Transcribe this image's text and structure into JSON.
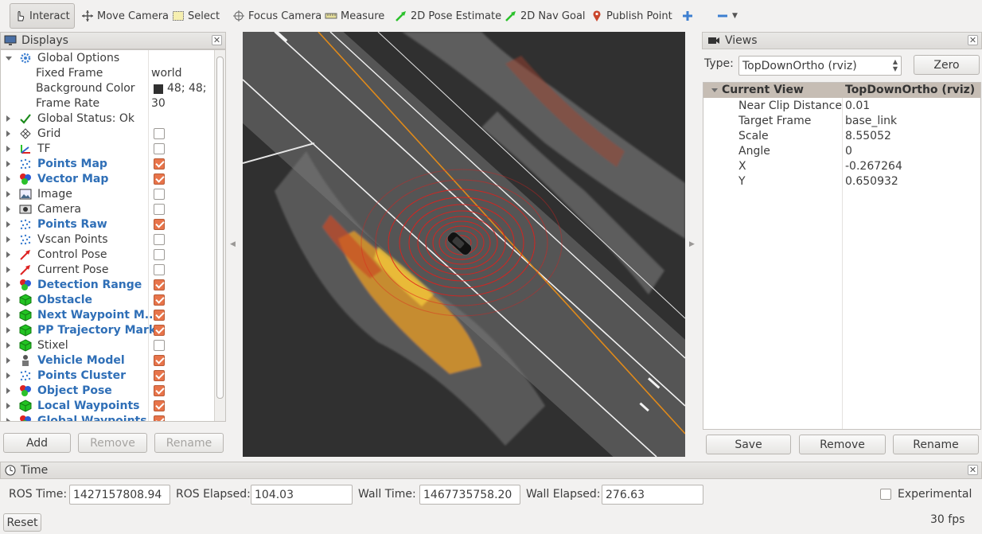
{
  "toolbar": {
    "interact": "Interact",
    "move_camera": "Move Camera",
    "select": "Select",
    "focus_camera": "Focus Camera",
    "measure": "Measure",
    "pose_estimate": "2D Pose Estimate",
    "nav_goal": "2D Nav Goal",
    "publish_point": "Publish Point"
  },
  "displays": {
    "title": "Displays",
    "items": [
      {
        "label": "Global Options",
        "icon": "gear-icon",
        "expanded": true
      },
      {
        "label": "Fixed Frame",
        "value": "world"
      },
      {
        "label": "Background Color",
        "value": "48; 48;",
        "swatch": "#303030"
      },
      {
        "label": "Frame Rate",
        "value": "30"
      },
      {
        "label": "Global Status: Ok",
        "icon": "check-icon"
      },
      {
        "label": "Grid",
        "icon": "grid-icon",
        "checked": false
      },
      {
        "label": "TF",
        "icon": "tf-icon",
        "checked": false
      },
      {
        "label": "Points Map",
        "icon": "points-icon",
        "checked": true,
        "highlight": true
      },
      {
        "label": "Vector Map",
        "icon": "marker-icon",
        "checked": true,
        "highlight": true
      },
      {
        "label": "Image",
        "icon": "image-icon",
        "checked": false
      },
      {
        "label": "Camera",
        "icon": "camera-icon",
        "checked": false
      },
      {
        "label": "Points Raw",
        "icon": "points-icon",
        "checked": true,
        "highlight": true
      },
      {
        "label": "Vscan Points",
        "icon": "points-icon",
        "checked": false
      },
      {
        "label": "Control Pose",
        "icon": "pose-icon",
        "checked": false
      },
      {
        "label": "Current Pose",
        "icon": "pose-icon",
        "checked": false
      },
      {
        "label": "Detection Range",
        "icon": "marker-icon",
        "checked": true,
        "highlight": true
      },
      {
        "label": "Obstacle",
        "icon": "cube-icon",
        "checked": true,
        "highlight": true
      },
      {
        "label": "Next Waypoint M...",
        "icon": "cube-icon",
        "checked": true,
        "highlight": true
      },
      {
        "label": "PP Trajectory Mark",
        "icon": "cube-icon",
        "checked": true,
        "highlight": true
      },
      {
        "label": "Stixel",
        "icon": "cube-icon",
        "checked": false
      },
      {
        "label": "Vehicle Model",
        "icon": "robot-icon",
        "checked": true,
        "highlight": true
      },
      {
        "label": "Points Cluster",
        "icon": "points-icon",
        "checked": true,
        "highlight": true
      },
      {
        "label": "Object Pose",
        "icon": "marker-icon",
        "checked": true,
        "highlight": true
      },
      {
        "label": "Local Waypoints",
        "icon": "cube-icon",
        "checked": true,
        "highlight": true
      },
      {
        "label": "Global Waypoints",
        "icon": "marker-icon",
        "checked": true,
        "highlight": true
      }
    ],
    "add": "Add",
    "remove": "Remove",
    "rename": "Rename"
  },
  "views": {
    "title": "Views",
    "type_label": "Type:",
    "type_value": "TopDownOrtho (rviz)",
    "zero": "Zero",
    "header_name": "Current View",
    "header_value": "TopDownOrtho (rviz)",
    "props": [
      {
        "label": "Near Clip Distance",
        "value": "0.01"
      },
      {
        "label": "Target Frame",
        "value": "base_link"
      },
      {
        "label": "Scale",
        "value": "8.55052"
      },
      {
        "label": "Angle",
        "value": "0"
      },
      {
        "label": "X",
        "value": "-0.267264"
      },
      {
        "label": "Y",
        "value": "0.650932"
      }
    ],
    "save": "Save",
    "remove": "Remove",
    "rename": "Rename"
  },
  "time": {
    "title": "Time",
    "ros_time_label": "ROS Time:",
    "ros_time": "1427157808.94",
    "ros_elapsed_label": "ROS Elapsed:",
    "ros_elapsed": "104.03",
    "wall_time_label": "Wall Time:",
    "wall_time": "1467735758.20",
    "wall_elapsed_label": "Wall Elapsed:",
    "wall_elapsed": "276.63",
    "experimental": "Experimental",
    "reset": "Reset",
    "fps": "30 fps"
  },
  "colors": {
    "accent_check": "#e8744a",
    "highlight_text": "#2f6fb7",
    "viewport_bg": "#303030"
  }
}
